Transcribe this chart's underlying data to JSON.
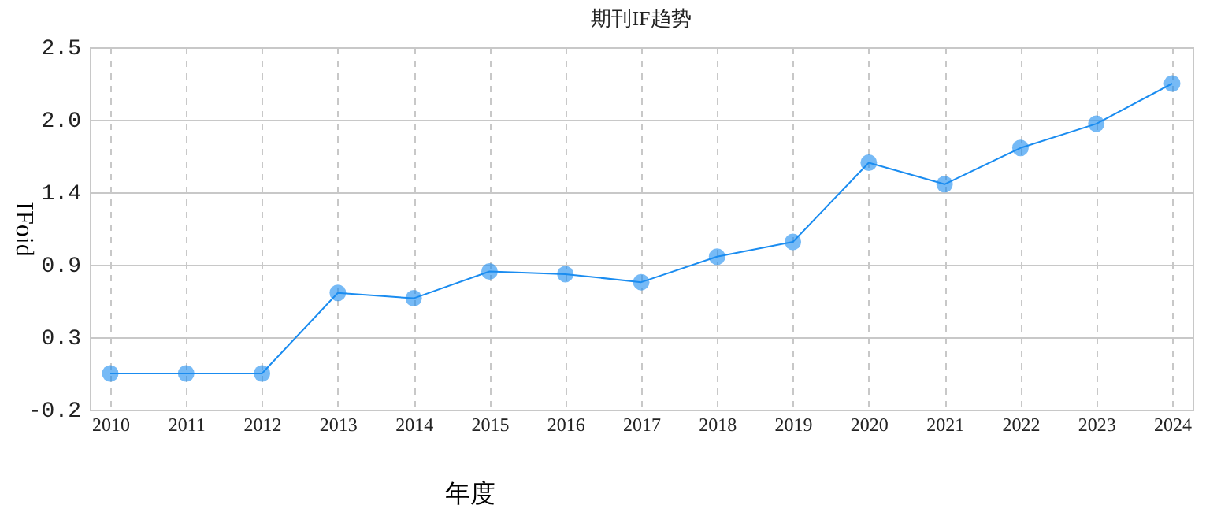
{
  "chart_data": {
    "type": "line",
    "title": "期刊IF趋势",
    "xlabel": "年度",
    "ylabel": "IFoid",
    "categories": [
      "2010",
      "2011",
      "2012",
      "2013",
      "2014",
      "2015",
      "2016",
      "2017",
      "2018",
      "2019",
      "2020",
      "2021",
      "2022",
      "2023",
      "2024"
    ],
    "series": [
      {
        "color": "#1a8cf0",
        "values": [
          0.07,
          0.07,
          0.07,
          0.67,
          0.63,
          0.83,
          0.81,
          0.75,
          0.94,
          1.05,
          1.64,
          1.48,
          1.75,
          1.93,
          2.23
        ]
      }
    ],
    "ylim": [
      -0.2,
      2.5
    ],
    "yticks": [
      -0.2,
      {
        "value": 0.34,
        "label": "0.3"
      },
      {
        "value": 0.88,
        "label": "0.9"
      },
      {
        "value": 1.42,
        "label": "1.4"
      },
      {
        "value": 1.96,
        "label": "2.0"
      },
      2.5
    ],
    "grid": true,
    "marker": "circle",
    "line_style": "solid"
  }
}
